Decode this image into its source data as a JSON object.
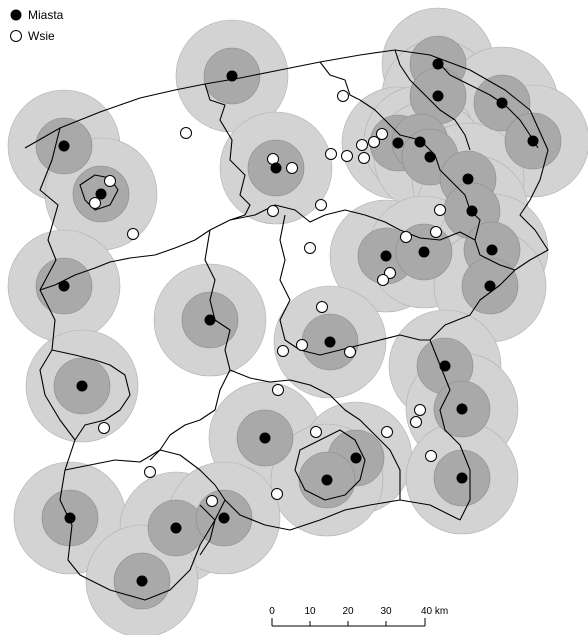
{
  "legend": {
    "cities_label": "Miasta",
    "villages_label": "Wsie"
  },
  "scalebar": {
    "ticks": [
      "0",
      "10",
      "20",
      "30",
      "40 km"
    ]
  },
  "colors": {
    "outer_buffer": "#d3d3d3",
    "inner_buffer": "#a9a9a9",
    "city": "#000000",
    "village_fill": "#ffffff",
    "boundary": "#000000"
  }
}
